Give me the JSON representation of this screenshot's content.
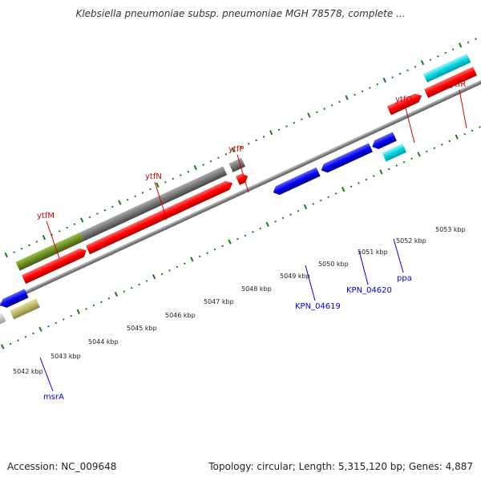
{
  "title": "Klebsiella pneumoniae subsp. pneumoniae MGH 78578, complete ...",
  "footer": {
    "accession": "Accession: NC_009648",
    "summary": "Topology: circular; Length: 5,315,120 bp; Genes: 4,887"
  },
  "ticks": [
    "5042 kbp",
    "5043 kbp",
    "5044 kbp",
    "5045 kbp",
    "5046 kbp",
    "5047 kbp",
    "5048 kbp",
    "5049 kbp",
    "5050 kbp",
    "5051 kbp",
    "5052 kbp",
    "5053 kbp"
  ],
  "genes_forward": [
    "ytfM",
    "ytfN",
    "ytfP",
    "ytfQ",
    "ytfR"
  ],
  "genes_reverse": [
    "msrA",
    "KPN_04619",
    "KPN_04620",
    "ppa"
  ],
  "colors": {
    "forward_label": "#cc0000",
    "reverse_label": "#0000cc",
    "red": "#ff0000",
    "blue": "#0000ee",
    "gray": "#777777",
    "olive": "#6b8e23",
    "cyan": "#00c8d8",
    "khaki": "#bdb76b",
    "tick": "#1a7a1a"
  }
}
